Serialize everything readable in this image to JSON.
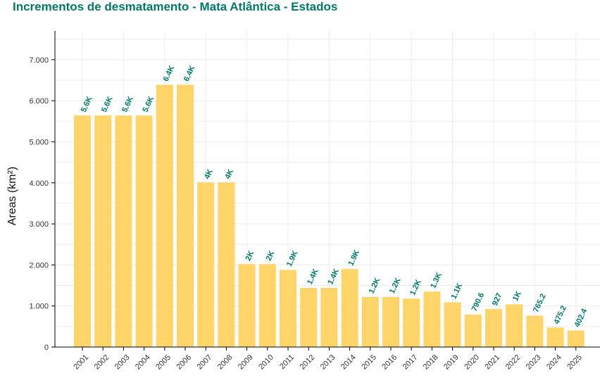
{
  "title": "Incrementos de desmatamento - Mata Atlântica - Estados",
  "colors": {
    "bar": "#ffd56a",
    "label": "#00776a",
    "title": "#00776a",
    "grid": "#ececec",
    "axis": "#000000"
  },
  "chart_data": {
    "type": "bar",
    "title": "Incrementos de desmatamento - Mata Atlântica - Estados",
    "xlabel": "",
    "ylabel": "Areas (km²)",
    "ylim": [
      0,
      7700
    ],
    "yticks": [
      0,
      1000,
      2000,
      3000,
      4000,
      5000,
      6000,
      7000
    ],
    "ytick_labels": [
      "0",
      "1.000",
      "2.000",
      "3.000",
      "4.000",
      "5.000",
      "6.000",
      "7.000"
    ],
    "grid": true,
    "categories": [
      "2001",
      "2002",
      "2003",
      "2004",
      "2005",
      "2006",
      "2007",
      "2008",
      "2009",
      "2010",
      "2011",
      "2012",
      "2013",
      "2014",
      "2015",
      "2016",
      "2017",
      "2018",
      "2019",
      "2020",
      "2021",
      "2022",
      "2023",
      "2024",
      "2025"
    ],
    "values": [
      5640,
      5640,
      5640,
      5640,
      6390,
      6390,
      4010,
      4010,
      2020,
      2020,
      1880,
      1440,
      1440,
      1900,
      1220,
      1220,
      1180,
      1350,
      1090,
      790.6,
      927,
      1040,
      765.2,
      475.2,
      402.4
    ],
    "labels": [
      "5.6K",
      "5.6K",
      "5.6K",
      "5.6K",
      "6.4K",
      "6.4K",
      "4K",
      "4K",
      "2K",
      "2K",
      "1.9K",
      "1.4K",
      "1.4K",
      "1.9K",
      "1.2K",
      "1.2K",
      "1.2K",
      "1.3K",
      "1.1K",
      "790.6",
      "927",
      "1K",
      "765.2",
      "475.2",
      "402.4"
    ]
  }
}
